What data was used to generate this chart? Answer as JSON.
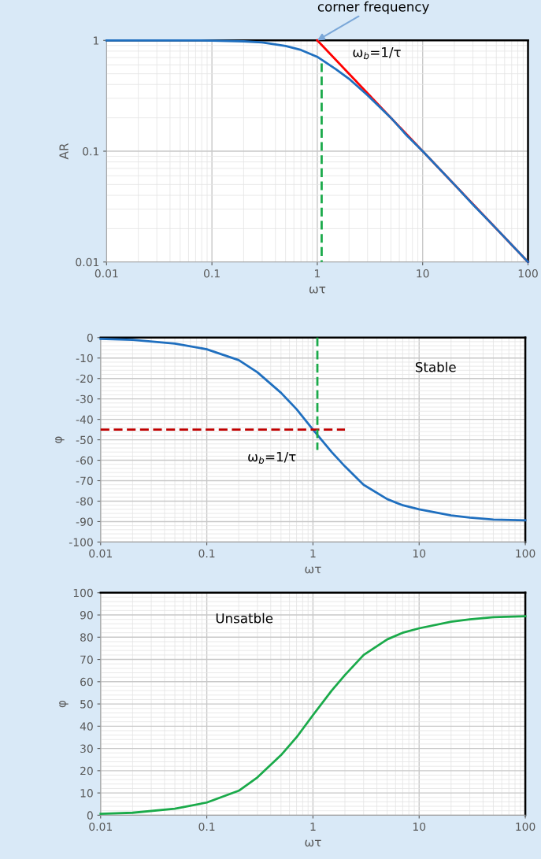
{
  "chart_data": [
    {
      "type": "line",
      "ylabel": "AR",
      "xlabel": "ωτ",
      "log": "xy",
      "xlim": [
        0.01,
        100
      ],
      "ylim": [
        0.01,
        1
      ],
      "xticks": [
        0.01,
        0.1,
        1,
        10,
        100
      ],
      "yticks": [
        0.01,
        0.1,
        1
      ],
      "grid": true,
      "marker": "none",
      "series": [
        {
          "color": "#ff0000",
          "x": [
            1,
            100
          ],
          "values": [
            1,
            0.01
          ],
          "line_style": "solid"
        },
        {
          "color": "#1f6fbf",
          "x": [
            0.01,
            0.02,
            0.05,
            0.1,
            0.2,
            0.3,
            0.5,
            0.7,
            1,
            1.5,
            2,
            3,
            5,
            7,
            10,
            20,
            30,
            50,
            100
          ],
          "values": [
            1,
            1,
            1,
            0.995,
            0.98,
            0.96,
            0.89,
            0.82,
            0.71,
            0.55,
            0.45,
            0.32,
            0.2,
            0.14,
            0.1,
            0.05,
            0.033,
            0.02,
            0.01
          ],
          "line_style": "solid"
        },
        {
          "color": "#1aaa4a",
          "x": [
            1.1,
            1.1
          ],
          "values": [
            0.62,
            0.01
          ],
          "line_style": "dashed"
        }
      ],
      "annotations": [
        {
          "text": "corner frequency",
          "x": 1,
          "y": 1
        },
        "ω$_{b}$=1/τ"
      ]
    },
    {
      "type": "line",
      "ylabel": "φ",
      "xlabel": "ωτ",
      "log": "x",
      "xlim": [
        0.01,
        100
      ],
      "ylim": [
        -100,
        0
      ],
      "xticks": [
        0.01,
        0.1,
        1,
        10,
        100
      ],
      "yticks": [
        -100,
        -90,
        -80,
        -70,
        -60,
        -50,
        -40,
        -30,
        -20,
        -10,
        0
      ],
      "grid": true,
      "marker": "none",
      "series": [
        {
          "color": "#1f6fbf",
          "x": [
            0.01,
            0.02,
            0.05,
            0.1,
            0.2,
            0.3,
            0.5,
            0.7,
            1,
            1.5,
            2,
            3,
            5,
            7,
            10,
            20,
            30,
            50,
            100
          ],
          "values": [
            -0.6,
            -1.1,
            -2.9,
            -5.7,
            -11,
            -17,
            -27,
            -35,
            -45,
            -56,
            -63,
            -72,
            -79,
            -82,
            -84,
            -87,
            -88,
            -89,
            -89.4
          ],
          "line_style": "solid"
        },
        {
          "color": "#c00000",
          "x": [
            0.01,
            2
          ],
          "values": [
            -45,
            -45
          ],
          "line_style": "dashed"
        },
        {
          "color": "#1aaa4a",
          "x": [
            1.1,
            1.1
          ],
          "values": [
            0,
            -55
          ],
          "line_style": "dashed"
        }
      ],
      "annotations": [
        "Stable",
        {
          "text": "ω$_{b}$=1/τ",
          "x": 1,
          "y": -45
        }
      ]
    },
    {
      "type": "line",
      "ylabel": "φ",
      "xlabel": "ωτ",
      "log": "x",
      "xlim": [
        0.01,
        100
      ],
      "ylim": [
        0,
        100
      ],
      "xticks": [
        0.01,
        0.1,
        1,
        10,
        100
      ],
      "yticks": [
        0,
        10,
        20,
        30,
        40,
        50,
        60,
        70,
        80,
        90,
        100
      ],
      "grid": true,
      "marker": "none",
      "series": [
        {
          "color": "#1aaa4a",
          "x": [
            0.01,
            0.02,
            0.05,
            0.1,
            0.2,
            0.3,
            0.5,
            0.7,
            1,
            1.5,
            2,
            3,
            5,
            7,
            10,
            20,
            30,
            50,
            100
          ],
          "values": [
            0.6,
            1.1,
            2.9,
            5.7,
            11,
            17,
            27,
            35,
            45,
            56,
            63,
            72,
            79,
            82,
            84,
            87,
            88,
            89,
            89.4
          ],
          "line_style": "solid"
        }
      ],
      "annotations": [
        "Unsatble"
      ]
    }
  ]
}
